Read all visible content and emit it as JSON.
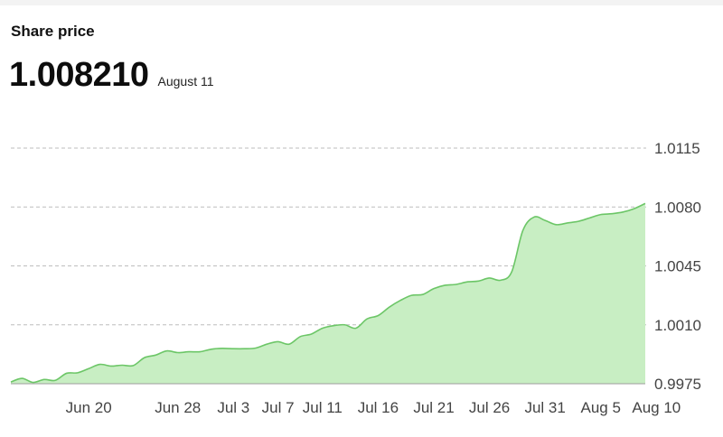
{
  "header": {
    "title": "Share price",
    "current_value": "1.008210",
    "current_date": "August 11"
  },
  "chart_data": {
    "type": "area",
    "title": "Share price",
    "xlabel": "",
    "ylabel": "",
    "ylim": [
      0.9975,
      1.0115
    ],
    "yticks": [
      0.9975,
      1.001,
      1.0045,
      1.008,
      1.0115
    ],
    "ytick_labels": [
      "0.9975",
      "1.0010",
      "1.0045",
      "1.0080",
      "1.0115"
    ],
    "grid": true,
    "y_axis_position": "right",
    "colors": {
      "fill": "#c8eec3",
      "line": "#6cc667",
      "grid": "#bdbdbd"
    },
    "xtick_labels": [
      {
        "label": "Jun 20",
        "index": 7
      },
      {
        "label": "Jun 28",
        "index": 15
      },
      {
        "label": "Jul 3",
        "index": 20
      },
      {
        "label": "Jul 7",
        "index": 24
      },
      {
        "label": "Jul 11",
        "index": 28
      },
      {
        "label": "Jul 16",
        "index": 33
      },
      {
        "label": "Jul 21",
        "index": 38
      },
      {
        "label": "Jul 26",
        "index": 43
      },
      {
        "label": "Jul 31",
        "index": 48
      },
      {
        "label": "Aug 5",
        "index": 53
      },
      {
        "label": "Aug 10",
        "index": 58
      }
    ],
    "series": [
      {
        "values": [
          0.9976,
          0.99782,
          0.99758,
          0.99775,
          0.9977,
          0.99812,
          0.99815,
          0.9984,
          0.99865,
          0.99855,
          0.9986,
          0.99858,
          0.99905,
          0.9992,
          0.99945,
          0.99935,
          0.9994,
          0.9994,
          0.99955,
          0.9996,
          0.99958,
          0.99958,
          0.99962,
          0.99985,
          1.0,
          0.99985,
          1.0003,
          1.00045,
          1.0008,
          1.00095,
          1.001,
          1.0008,
          1.00135,
          1.00155,
          1.00205,
          1.00245,
          1.00275,
          1.0028,
          1.00315,
          1.00335,
          1.0034,
          1.00355,
          1.0036,
          1.00378,
          1.00365,
          1.00415,
          1.0066,
          1.0074,
          1.0072,
          1.00695,
          1.00705,
          1.00715,
          1.00735,
          1.00755,
          1.0076,
          1.0077,
          1.0079,
          1.00821
        ]
      }
    ]
  }
}
